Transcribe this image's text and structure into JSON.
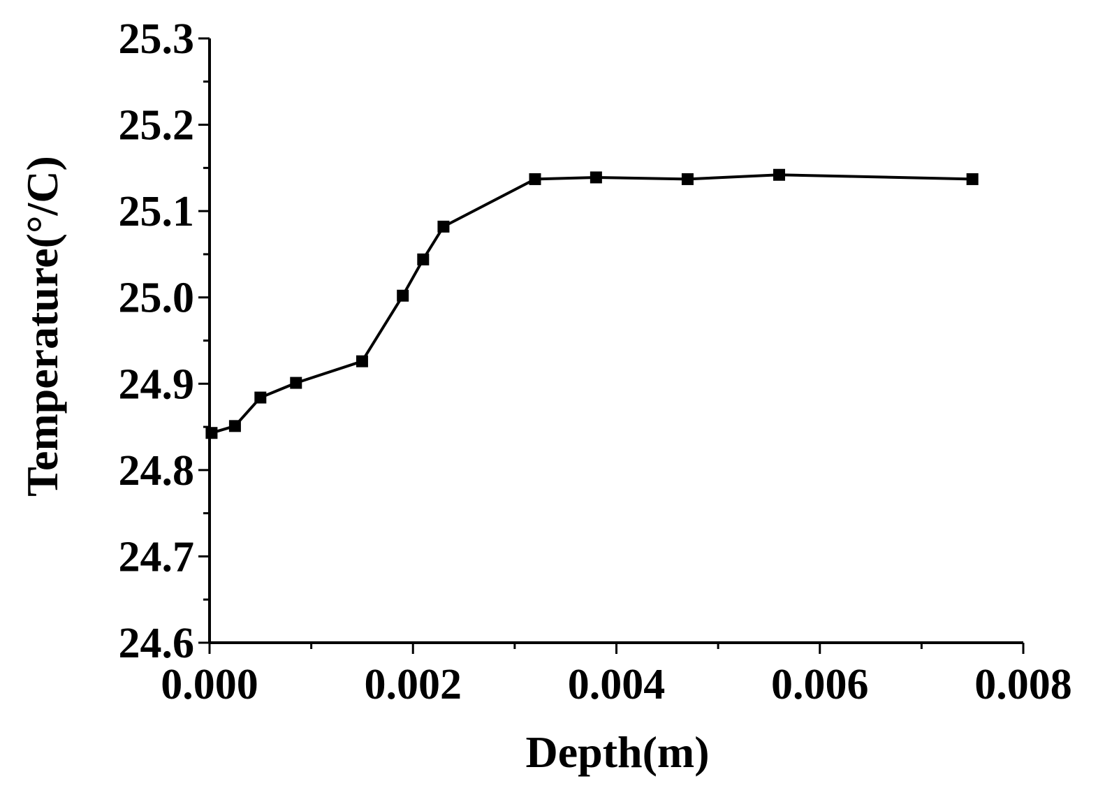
{
  "chart_data": {
    "type": "line",
    "title": "",
    "xlabel": "Depth(m)",
    "ylabel": "Temperature(°/C)",
    "xlim": [
      0,
      0.008
    ],
    "ylim": [
      24.6,
      25.3
    ],
    "x_ticks": [
      0,
      0.002,
      0.004,
      0.006,
      0.008
    ],
    "x_tick_labels": [
      "0.000",
      "0.002",
      "0.004",
      "0.006",
      "0.008"
    ],
    "x_minor_step": 0.001,
    "y_ticks": [
      24.6,
      24.7,
      24.8,
      24.9,
      25.0,
      25.1,
      25.2,
      25.3
    ],
    "y_tick_labels": [
      "24.6",
      "24.7",
      "24.8",
      "24.9",
      "25.0",
      "25.1",
      "25.2",
      "25.3"
    ],
    "y_minor_step": 0.05,
    "grid": false,
    "legend": "none",
    "marker": "square",
    "line_color": "#000000",
    "series": [
      {
        "x": [
          2e-05,
          0.00025,
          0.0005,
          0.00085,
          0.0015,
          0.0019,
          0.0021,
          0.0023,
          0.0032,
          0.0038,
          0.0047,
          0.0056,
          0.0075
        ],
        "y": [
          24.843,
          24.851,
          24.884,
          24.901,
          24.926,
          25.002,
          25.044,
          25.082,
          25.137,
          25.139,
          25.137,
          25.142,
          25.137
        ]
      }
    ]
  }
}
